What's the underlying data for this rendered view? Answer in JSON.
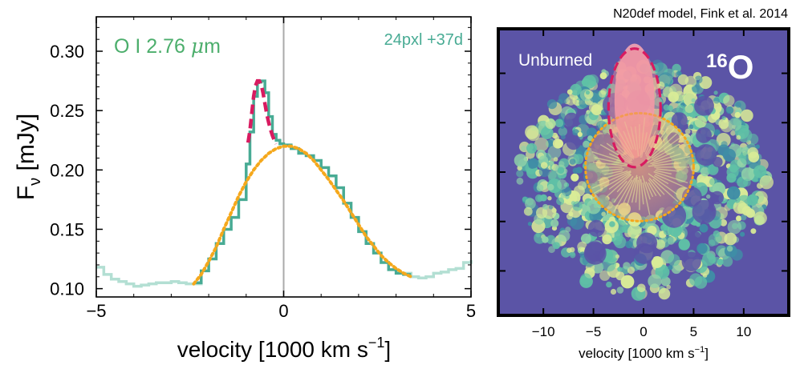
{
  "chart_data": [
    {
      "type": "line",
      "ylabel": "Fν [mJy]",
      "ylabel_main": "F",
      "ylabel_sub": "ν",
      "ylabel_unit": " [mJy]",
      "xlabel": "velocity [1000 km s⁻¹]",
      "xlabel_main": "velocity [1000 km s",
      "xlabel_sup": "−1",
      "xlabel_end": "]",
      "xlim": [
        -5,
        5
      ],
      "ylim": [
        0.093,
        0.329
      ],
      "xticks": [
        -5,
        0,
        5
      ],
      "xtick_labels": [
        "−5",
        "0",
        "5"
      ],
      "yticks": [
        0.1,
        0.15,
        0.2,
        0.25,
        0.3
      ],
      "ytick_labels": [
        "0.10",
        "0.15",
        "0.20",
        "0.25",
        "0.30"
      ],
      "annotation_line": "O I 2.76 ",
      "annotation_mu": "μ",
      "annotation_unit": "m",
      "annotation_right": "24pxl +37d",
      "vline_x": 0,
      "colors": {
        "observed": "#48ab94",
        "observed_ext": "#b3dfd3",
        "peak_fit": "#d81b60",
        "broad_fit": "#f5a81c",
        "annotation": "#4cae6c",
        "annotation_right": "#48ab94",
        "vline": "#aaaaaa"
      },
      "series": [
        {
          "key": "observed_ext",
          "x": [
            -5.0,
            -4.8,
            -4.6,
            -4.4,
            -4.2,
            -4.0,
            -3.8,
            -3.6,
            -3.4,
            -3.2,
            -3.0,
            -2.8,
            -2.6,
            -2.4,
            -2.2
          ],
          "y": [
            0.118,
            0.112,
            0.108,
            0.106,
            0.104,
            0.102,
            0.103,
            0.104,
            0.105,
            0.105,
            0.106,
            0.105,
            0.104,
            0.104,
            0.105
          ]
        },
        {
          "key": "observed_ext_right",
          "x": [
            3.2,
            3.4,
            3.6,
            3.8,
            4.0,
            4.2,
            4.4,
            4.6,
            4.8,
            5.0
          ],
          "y": [
            0.113,
            0.11,
            0.109,
            0.11,
            0.113,
            0.114,
            0.116,
            0.117,
            0.122,
            0.124
          ]
        },
        {
          "key": "observed",
          "x": [
            -2.4,
            -2.2,
            -2.0,
            -1.8,
            -1.6,
            -1.4,
            -1.2,
            -1.0,
            -0.9,
            -0.8,
            -0.7,
            -0.6,
            -0.5,
            -0.4,
            -0.3,
            -0.2,
            -0.1,
            0.0,
            0.2,
            0.4,
            0.6,
            0.8,
            1.0,
            1.2,
            1.4,
            1.6,
            1.8,
            2.0,
            2.2,
            2.4,
            2.6,
            2.8,
            3.0,
            3.2,
            3.4
          ],
          "y": [
            0.105,
            0.115,
            0.125,
            0.138,
            0.15,
            0.16,
            0.175,
            0.205,
            0.232,
            0.262,
            0.274,
            0.275,
            0.265,
            0.245,
            0.23,
            0.225,
            0.222,
            0.221,
            0.218,
            0.214,
            0.212,
            0.208,
            0.202,
            0.195,
            0.185,
            0.172,
            0.16,
            0.148,
            0.138,
            0.13,
            0.122,
            0.116,
            0.113,
            0.112,
            0.112
          ]
        },
        {
          "key": "peak_fit",
          "x": [
            -0.95,
            -0.9,
            -0.85,
            -0.8,
            -0.75,
            -0.7,
            -0.65,
            -0.6,
            -0.55,
            -0.5,
            -0.45,
            -0.4,
            -0.35,
            -0.3,
            -0.25,
            -0.2
          ],
          "y": [
            0.223,
            0.233,
            0.248,
            0.262,
            0.271,
            0.275,
            0.275,
            0.272,
            0.265,
            0.256,
            0.247,
            0.24,
            0.234,
            0.229,
            0.225,
            0.222
          ]
        },
        {
          "key": "broad_fit",
          "x": [
            -2.4,
            -2.2,
            -2.0,
            -1.8,
            -1.6,
            -1.4,
            -1.2,
            -1.0,
            -0.8,
            -0.6,
            -0.4,
            -0.2,
            0.0,
            0.2,
            0.4,
            0.6,
            0.8,
            1.0,
            1.2,
            1.4,
            1.6,
            1.8,
            2.0,
            2.2,
            2.4,
            2.6,
            2.8,
            3.0,
            3.2,
            3.4
          ],
          "y": [
            0.104,
            0.112,
            0.123,
            0.135,
            0.15,
            0.164,
            0.178,
            0.19,
            0.2,
            0.208,
            0.214,
            0.218,
            0.22,
            0.22,
            0.218,
            0.214,
            0.208,
            0.2,
            0.192,
            0.183,
            0.174,
            0.164,
            0.154,
            0.144,
            0.136,
            0.128,
            0.122,
            0.117,
            0.113,
            0.11
          ]
        }
      ]
    },
    {
      "type": "heatmap",
      "title": "N20def model, Fink et al. 2014",
      "xlabel": "velocity [1000 km s⁻¹]",
      "xlabel_main": "velocity [1000 km s",
      "xlabel_sup": "−1",
      "xlabel_end": "]",
      "xlim": [
        -14.5,
        14.5
      ],
      "ylim": [
        -14.5,
        14.5
      ],
      "xticks": [
        -10,
        -5,
        0,
        5,
        10
      ],
      "xtick_labels": [
        "−10",
        "−5",
        "0",
        "5",
        "10"
      ],
      "yticks": [
        -10,
        -5,
        0,
        5,
        10
      ],
      "label_region": "Unburned",
      "label_isotope_mass": "16",
      "label_isotope_element": "O",
      "colors": {
        "background": "#5b54a6",
        "frame": "#000000",
        "dense_low": "#3f8ea6",
        "dense_mid": "#5fc1a6",
        "dense_high": "#d9ec97",
        "unburned": "#f5a4b2",
        "peak_ellipse": "#d81b60",
        "broad_circle": "#f5a81c",
        "broad_fill": "#f1a378"
      },
      "overlays": {
        "peak_ellipse": {
          "cx": -0.9,
          "cy": 6.5,
          "rx": 2.6,
          "ry": 6.0
        },
        "broad_circle": {
          "cx": -0.4,
          "cy": 0.5,
          "r": 5.4
        }
      }
    }
  ]
}
